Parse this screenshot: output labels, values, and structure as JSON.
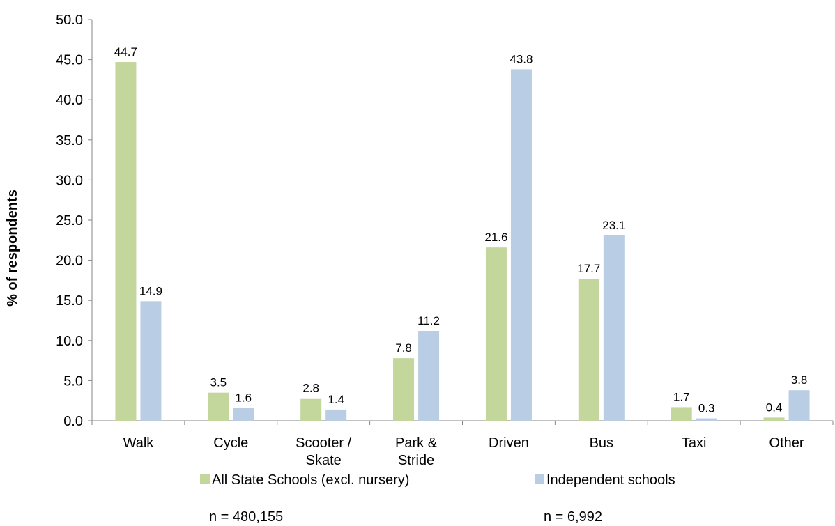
{
  "chart_data": {
    "type": "bar",
    "title": "",
    "xlabel": "",
    "ylabel": "% of respondents",
    "ylim": [
      0,
      50
    ],
    "ytick_step": 5,
    "ytick_labels": [
      "0.0",
      "5.0",
      "10.0",
      "15.0",
      "20.0",
      "25.0",
      "30.0",
      "35.0",
      "40.0",
      "45.0",
      "50.0"
    ],
    "categories": [
      [
        "Walk"
      ],
      [
        "Cycle"
      ],
      [
        "Scooter /",
        "Skate"
      ],
      [
        "Park &",
        "Stride"
      ],
      [
        "Driven"
      ],
      [
        "Bus"
      ],
      [
        "Taxi"
      ],
      [
        "Other"
      ]
    ],
    "series": [
      {
        "name": "All State Schools (excl. nursery)",
        "note": "n = 480,155",
        "color": "#c3d69b",
        "values": [
          44.7,
          3.5,
          2.8,
          7.8,
          21.6,
          17.7,
          1.7,
          0.4
        ],
        "labels": [
          "44.7",
          "3.5",
          "2.8",
          "7.8",
          "21.6",
          "17.7",
          "1.7",
          "0.4"
        ]
      },
      {
        "name": "Independent schools",
        "note": "n = 6,992",
        "color": "#b9cde5",
        "values": [
          14.9,
          1.6,
          1.4,
          11.2,
          43.8,
          23.1,
          0.3,
          3.8
        ],
        "labels": [
          "14.9",
          "1.6",
          "1.4",
          "11.2",
          "43.8",
          "23.1",
          "0.3",
          "3.8"
        ]
      }
    ],
    "grid": false,
    "legend_position": "bottom"
  }
}
